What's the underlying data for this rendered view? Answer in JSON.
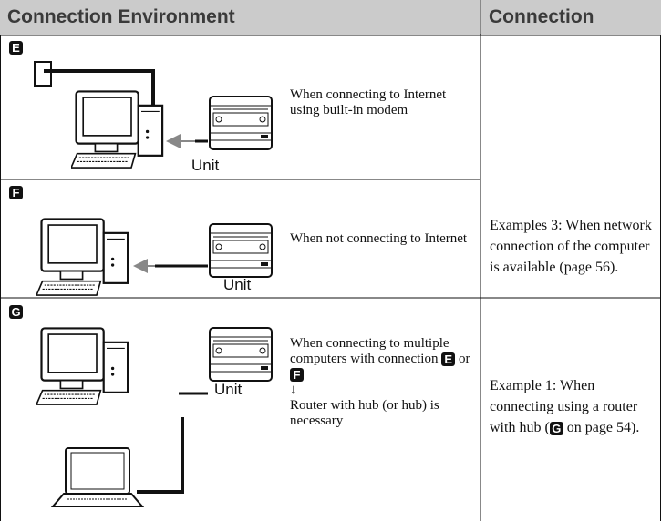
{
  "header": [
    "Connection Environment",
    "Connection"
  ],
  "rows": [
    {
      "marker": "E",
      "description": [
        {
          "text": "When connecting to Internet using built-in modem"
        }
      ],
      "unit_label": "Unit"
    },
    {
      "marker": "F",
      "description": [
        {
          "text": "When not connecting to Internet"
        }
      ],
      "unit_label": "Unit"
    },
    {
      "marker": "G",
      "description": [
        {
          "text": "When connecting to multiple computers with connection "
        },
        {
          "marker": "E"
        },
        {
          "text": " or "
        },
        {
          "marker": "F"
        },
        {
          "text": "↓"
        },
        {
          "text": "Router with hub (or hub) is necessary"
        }
      ],
      "unit_label": "Unit"
    }
  ],
  "connections": [
    [
      {
        "text": "Examples 3: When network connection of the computer is available (page 56)."
      }
    ],
    [
      {
        "text": "Example 1: When connecting using a router with hub ("
      },
      {
        "marker": "G"
      },
      {
        "text": " on page 54)."
      }
    ]
  ]
}
